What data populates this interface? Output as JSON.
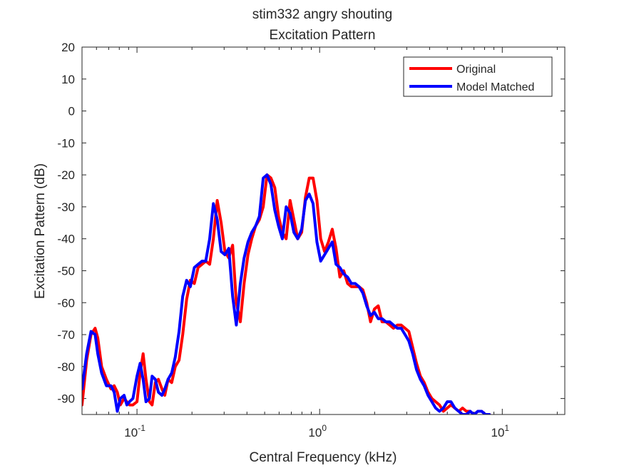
{
  "chart_data": {
    "type": "line",
    "title": "stim332 angry shouting",
    "subtitle": "Excitation Pattern",
    "xlabel": "Central Frequency (kHz)",
    "ylabel": "Excitation Pattern (dB)",
    "xscale": "log",
    "xlim": [
      0.05,
      22
    ],
    "ylim": [
      -95,
      20
    ],
    "yticks": [
      20,
      10,
      0,
      -10,
      -20,
      -30,
      -40,
      -50,
      -60,
      -70,
      -80,
      -90
    ],
    "xticks": [
      {
        "value": 0.1,
        "base": "10",
        "exp": "-1"
      },
      {
        "value": 1,
        "base": "10",
        "exp": "0"
      },
      {
        "value": 10,
        "base": "10",
        "exp": "1"
      }
    ],
    "grid": false,
    "legend_position": "top-right",
    "series": [
      {
        "name": "Original",
        "color": "#ff0000",
        "x": [
          0.05,
          0.053,
          0.056,
          0.059,
          0.061,
          0.064,
          0.068,
          0.072,
          0.075,
          0.078,
          0.081,
          0.085,
          0.088,
          0.091,
          0.095,
          0.1,
          0.104,
          0.108,
          0.112,
          0.117,
          0.121,
          0.126,
          0.131,
          0.137,
          0.142,
          0.148,
          0.155,
          0.162,
          0.17,
          0.178,
          0.187,
          0.196,
          0.206,
          0.216,
          0.227,
          0.238,
          0.25,
          0.262,
          0.275,
          0.289,
          0.303,
          0.318,
          0.334,
          0.35,
          0.368,
          0.386,
          0.405,
          0.425,
          0.446,
          0.468,
          0.491,
          0.515,
          0.541,
          0.568,
          0.596,
          0.625,
          0.656,
          0.689,
          0.723,
          0.759,
          0.797,
          0.836,
          0.877,
          0.921,
          0.966,
          1.014,
          1.064,
          1.117,
          1.172,
          1.23,
          1.291,
          1.355,
          1.422,
          1.492,
          1.566,
          1.644,
          1.725,
          1.81,
          1.9,
          1.994,
          2.093,
          2.197,
          2.305,
          2.419,
          2.539,
          2.665,
          2.797,
          2.935,
          3.08,
          3.233,
          3.393,
          3.561,
          3.737,
          3.922,
          4.116,
          4.32,
          4.534,
          4.758,
          4.994,
          5.241,
          5.501,
          5.773,
          6.059,
          6.359,
          6.674,
          7.004,
          7.35,
          7.714,
          8.096,
          8.496
        ],
        "y": [
          -92,
          -78,
          -70,
          -68,
          -71,
          -80,
          -84,
          -87,
          -86,
          -88,
          -92,
          -90,
          -91,
          -92,
          -92,
          -91,
          -82,
          -76,
          -84,
          -91,
          -92,
          -85,
          -84,
          -87,
          -89,
          -84,
          -85,
          -80,
          -78,
          -70,
          -59,
          -53,
          -54,
          -49,
          -48,
          -47,
          -48,
          -40,
          -28,
          -35,
          -44,
          -46,
          -42,
          -60,
          -66,
          -54,
          -45,
          -40,
          -36,
          -34,
          -30,
          -20,
          -21,
          -24,
          -33,
          -38,
          -40,
          -28,
          -34,
          -40,
          -38,
          -27,
          -21,
          -21,
          -28,
          -40,
          -44,
          -41,
          -37,
          -43,
          -52,
          -50,
          -54,
          -55,
          -55,
          -55,
          -56,
          -60,
          -66,
          -62,
          -61,
          -66,
          -66,
          -67,
          -68,
          -67,
          -67,
          -68,
          -69,
          -74,
          -79,
          -83,
          -85,
          -88,
          -90,
          -91,
          -92,
          -94,
          -93,
          -92,
          -93,
          -94,
          -93,
          -94,
          -94,
          -95,
          -94,
          -94,
          -95,
          -95
        ]
      },
      {
        "name": "Model Matched",
        "color": "#0000ff",
        "x": [
          0.05,
          0.053,
          0.056,
          0.059,
          0.061,
          0.064,
          0.068,
          0.072,
          0.075,
          0.078,
          0.081,
          0.085,
          0.088,
          0.091,
          0.095,
          0.1,
          0.104,
          0.108,
          0.112,
          0.117,
          0.121,
          0.126,
          0.131,
          0.137,
          0.142,
          0.148,
          0.155,
          0.162,
          0.17,
          0.178,
          0.187,
          0.196,
          0.206,
          0.216,
          0.227,
          0.238,
          0.25,
          0.262,
          0.275,
          0.289,
          0.303,
          0.318,
          0.334,
          0.35,
          0.368,
          0.386,
          0.405,
          0.425,
          0.446,
          0.468,
          0.491,
          0.515,
          0.541,
          0.568,
          0.596,
          0.625,
          0.656,
          0.689,
          0.723,
          0.759,
          0.797,
          0.836,
          0.877,
          0.921,
          0.966,
          1.014,
          1.064,
          1.117,
          1.172,
          1.23,
          1.291,
          1.355,
          1.422,
          1.492,
          1.566,
          1.644,
          1.725,
          1.81,
          1.9,
          1.994,
          2.093,
          2.197,
          2.305,
          2.419,
          2.539,
          2.665,
          2.797,
          2.935,
          3.08,
          3.233,
          3.393,
          3.561,
          3.737,
          3.922,
          4.116,
          4.32,
          4.534,
          4.758,
          4.994,
          5.241,
          5.501,
          5.773,
          6.059,
          6.359,
          6.674,
          7.004,
          7.35,
          7.714,
          8.096,
          8.496
        ],
        "y": [
          -87,
          -76,
          -69,
          -70,
          -76,
          -82,
          -86,
          -86,
          -88,
          -94,
          -90,
          -89,
          -92,
          -91,
          -90,
          -83,
          -79,
          -84,
          -91,
          -90,
          -83,
          -84,
          -88,
          -89,
          -87,
          -84,
          -82,
          -77,
          -69,
          -58,
          -53,
          -55,
          -49,
          -48,
          -47,
          -47,
          -40,
          -29,
          -34,
          -44,
          -45,
          -43,
          -58,
          -67,
          -54,
          -46,
          -41,
          -38,
          -36,
          -33,
          -21,
          -20,
          -23,
          -31,
          -36,
          -40,
          -30,
          -32,
          -38,
          -40,
          -37,
          -28,
          -26,
          -29,
          -41,
          -47,
          -45,
          -43,
          -41,
          -48,
          -49,
          -51,
          -52,
          -54,
          -54,
          -55,
          -57,
          -61,
          -64,
          -63,
          -65,
          -65,
          -66,
          -66,
          -67,
          -68,
          -68,
          -70,
          -72,
          -76,
          -81,
          -84,
          -86,
          -89,
          -91,
          -93,
          -94,
          -93,
          -91,
          -91,
          -93,
          -94,
          -95,
          -95,
          -94,
          -95,
          -94,
          -94,
          -95,
          -95
        ]
      }
    ]
  }
}
